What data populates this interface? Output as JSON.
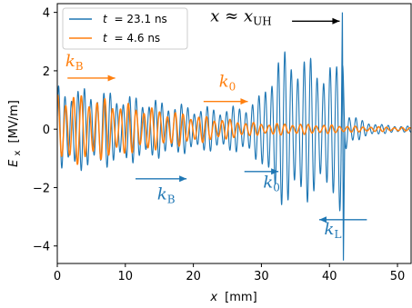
{
  "chart_data": {
    "type": "line",
    "xlabel_var": "x",
    "xlabel_unit": "[mm]",
    "ylabel_var": "E",
    "ylabel_sub": "x",
    "ylabel_unit": "[MV/m]",
    "xlim": [
      0,
      52
    ],
    "ylim": [
      -4.6,
      4.3
    ],
    "xticks": [
      0,
      10,
      20,
      30,
      40,
      50
    ],
    "yticks": [
      -4,
      -2,
      0,
      2,
      4
    ],
    "xtick_labels": [
      "0",
      "10",
      "20",
      "30",
      "40",
      "50"
    ],
    "ytick_labels": [
      "−4",
      "−2",
      "0",
      "2",
      "4"
    ],
    "grid": false,
    "legend_position": "top-left",
    "series": [
      {
        "name_var": "t",
        "name_value": "= 23.1 ns",
        "color": "#1f77b4",
        "envelope_x": [
          0,
          5,
          10,
          15,
          20,
          25,
          28,
          30,
          31,
          32,
          34,
          36,
          38,
          40,
          41,
          41.8,
          42.3,
          43,
          45,
          48,
          52
        ],
        "envelope_y": [
          1.5,
          1.4,
          1.2,
          1.0,
          0.8,
          0.75,
          0.9,
          1.2,
          1.9,
          2.6,
          2.7,
          2.6,
          2.4,
          2.3,
          2.1,
          4.0,
          1.2,
          0.5,
          0.3,
          0.15,
          0.1
        ],
        "peak": {
          "x": 42.0,
          "y_max": 4.0,
          "y_min": -4.5
        }
      },
      {
        "name_var": "t",
        "name_value": "= 4.6 ns",
        "color": "#ff7f0e",
        "envelope_x": [
          0,
          5,
          10,
          15,
          20,
          25,
          28,
          30,
          33,
          36,
          40,
          42,
          44,
          48,
          52
        ],
        "envelope_y": [
          1.3,
          1.15,
          0.9,
          0.7,
          0.5,
          0.35,
          0.25,
          0.2,
          0.2,
          0.18,
          0.15,
          0.12,
          0.1,
          0.08,
          0.05
        ]
      }
    ],
    "annotations": [
      {
        "label": "k",
        "sub": "B",
        "color": "#ff7f0e",
        "x": 2.5,
        "y": 2.15,
        "arrow": "right",
        "arrow_x": [
          1.5,
          8.5
        ],
        "arrow_y": 1.75
      },
      {
        "label": "k",
        "sub": "0",
        "color": "#ff7f0e",
        "x": 25.0,
        "y": 1.45,
        "arrow": "right",
        "arrow_x": [
          21.5,
          28.0
        ],
        "arrow_y": 0.95
      },
      {
        "label": "k",
        "sub": "B",
        "color": "#1f77b4",
        "x": 16.0,
        "y": -2.4,
        "arrow": "right",
        "arrow_x": [
          11.5,
          19.0
        ],
        "arrow_y": -1.7
      },
      {
        "label": "k",
        "sub": "0",
        "color": "#1f77b4",
        "x": 31.5,
        "y": -2.0,
        "arrow": "right",
        "arrow_x": [
          27.5,
          32.5
        ],
        "arrow_y": -1.45
      },
      {
        "label": "k",
        "sub": "L",
        "color": "#1f77b4",
        "x": 40.5,
        "y": -3.6,
        "arrow": "left",
        "arrow_x": [
          45.5,
          38.5
        ],
        "arrow_y": -3.1
      },
      {
        "label": "x ≈ x",
        "sub": "UH",
        "color": "#000000",
        "x": 27.0,
        "y": 3.7,
        "arrow": "right",
        "arrow_x": [
          34.5,
          41.5
        ],
        "arrow_y": 3.7
      }
    ]
  }
}
